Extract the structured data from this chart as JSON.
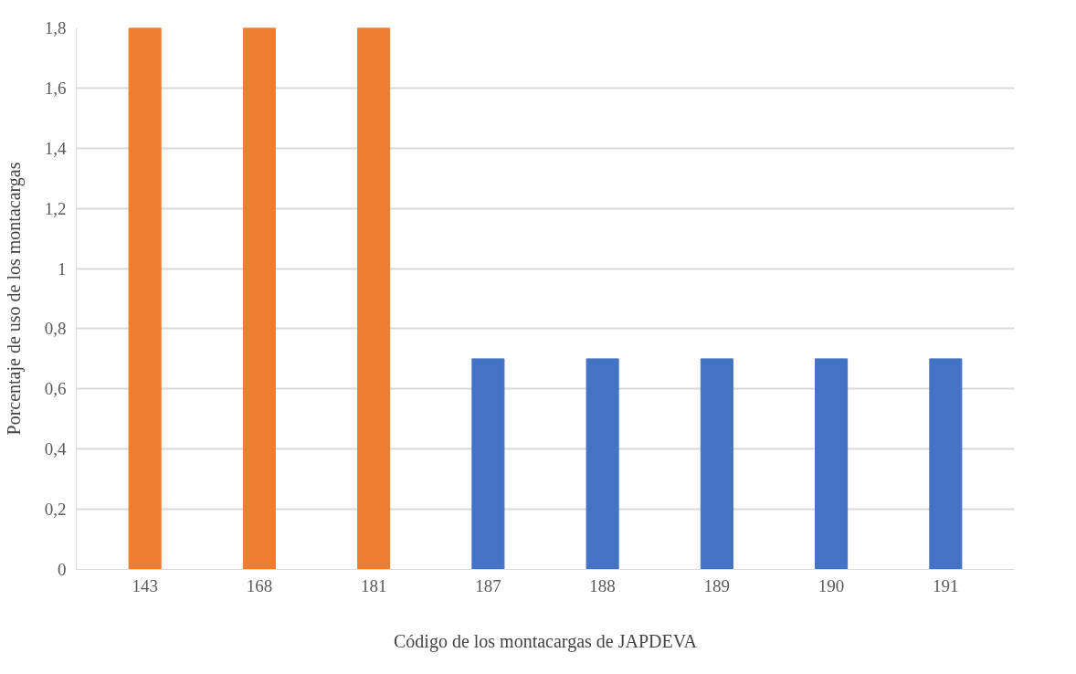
{
  "chart_data": {
    "type": "bar",
    "xlabel": "Código de los montacargas de JAPDEVA",
    "ylabel": "Porcentaje de uso de los montacargas",
    "categories": [
      "143",
      "168",
      "181",
      "187",
      "188",
      "189",
      "190",
      "191"
    ],
    "values": [
      1.8,
      1.8,
      1.8,
      0.7,
      0.7,
      0.7,
      0.7,
      0.7
    ],
    "colors": [
      "#ed7d31",
      "#ed7d31",
      "#ed7d31",
      "#4472c4",
      "#4472c4",
      "#4472c4",
      "#4472c4",
      "#4472c4"
    ],
    "ylim": [
      0,
      1.8
    ],
    "yticks": [
      0,
      {
        "value": 0.2,
        "label": "0,2"
      },
      {
        "value": 0.4,
        "label": "0,4"
      },
      {
        "value": 0.6,
        "label": "0,6"
      },
      {
        "value": 0.8,
        "label": "0,8"
      },
      1,
      {
        "value": 1.2,
        "label": "1,2"
      },
      {
        "value": 1.4,
        "label": "1,4"
      },
      {
        "value": 1.6,
        "label": "1,6"
      },
      {
        "value": 1.8,
        "label": "1,8"
      }
    ],
    "grid": "y"
  }
}
